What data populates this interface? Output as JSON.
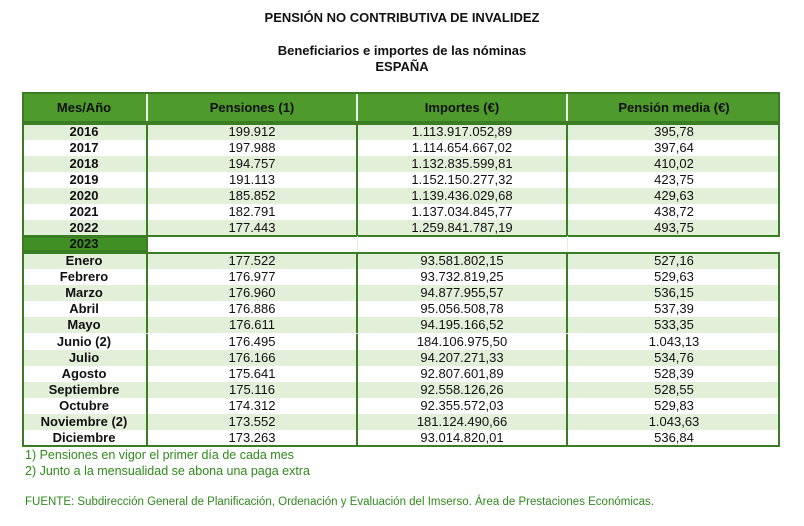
{
  "title": "PENSIÓN NO CONTRIBUTIVA DE INVALIDEZ",
  "subtitle": "Beneficiarios e importes de las nóminas",
  "region": "ESPAÑA",
  "table": {
    "header": [
      "Mes/Año",
      "Pensiones (1)",
      "Importes (€)",
      "Pensión media (€)"
    ],
    "years": [
      [
        "2016",
        "199.912",
        "1.113.917.052,89",
        "395,78"
      ],
      [
        "2017",
        "197.988",
        "1.114.654.667,02",
        "397,64"
      ],
      [
        "2018",
        "194.757",
        "1.132.835.599,81",
        "410,02"
      ],
      [
        "2019",
        "191.113",
        "1.152.150.277,32",
        "423,75"
      ],
      [
        "2020",
        "185.852",
        "1.139.436.029,68",
        "429,63"
      ],
      [
        "2021",
        "182.791",
        "1.137.034.845,77",
        "438,72"
      ],
      [
        "2022",
        "177.443",
        "1.259.841.787,19",
        "493,75"
      ]
    ],
    "section": "2023",
    "months": [
      [
        "Enero",
        "177.522",
        "93.581.802,15",
        "527,16"
      ],
      [
        "Febrero",
        "176.977",
        "93.732.819,25",
        "529,63"
      ],
      [
        "Marzo",
        "176.960",
        "94.877.955,57",
        "536,15"
      ],
      [
        "Abril",
        "176.886",
        "95.056.508,78",
        "537,39"
      ],
      [
        "Mayo",
        "176.611",
        "94.195.166,52",
        "533,35"
      ],
      [
        "Junio (2)",
        "176.495",
        "184.106.975,50",
        "1.043,13"
      ],
      [
        "Julio",
        "176.166",
        "94.207.271,33",
        "534,76"
      ],
      [
        "Agosto",
        "175.641",
        "92.807.601,89",
        "528,39"
      ],
      [
        "Septiembre",
        "175.116",
        "92.558.126,26",
        "528,55"
      ],
      [
        "Octubre",
        "174.312",
        "92.355.572,03",
        "529,83"
      ],
      [
        "Noviembre (2)",
        "173.552",
        "181.124.490,66",
        "1.043,63"
      ],
      [
        "Diciembre",
        "173.263",
        "93.014.820,01",
        "536,84"
      ]
    ]
  },
  "footnotes": [
    "1) Pensiones en vigor el primer día de cada mes",
    "2) Junto a la mensualidad se abona una paga extra"
  ],
  "source": "FUENTE: Subdirección General de Planificación, Ordenación y Evaluación del Imserso. Área de Prestaciones Económicas."
}
